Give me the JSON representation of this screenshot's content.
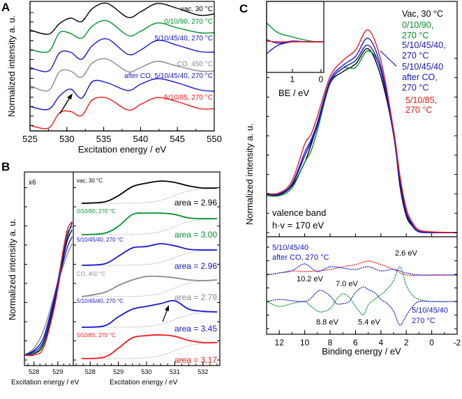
{
  "colors": {
    "black": "#000000",
    "green": "#00912a",
    "blue": "#1414d2",
    "gray": "#8a8a8a",
    "red": "#f01818",
    "bg": "#aaaaaa"
  },
  "chart_data": [
    {
      "panel": "A",
      "type": "line",
      "xlabel": "Excitation energy / eV",
      "ylabel": "Normalized intensity a. u.",
      "xlim": [
        525,
        550
      ],
      "xticks": [
        525,
        530,
        535,
        540,
        545,
        550
      ],
      "ylim": [
        0,
        18.6
      ],
      "x": [
        525,
        527.5,
        529,
        530.5,
        532,
        533.5,
        535.5,
        538.3,
        540,
        542.3,
        545,
        548,
        550
      ],
      "series": [
        {
          "name": "vac. 30 °C",
          "color": "black",
          "values": [
            14.5,
            13.9,
            15.4,
            16.2,
            15.7,
            17.6,
            18.3,
            16.3,
            17.1,
            18.3,
            17.6,
            16.6,
            16.8
          ]
        },
        {
          "name": "0/10/90, 270 °C",
          "color": "green",
          "values": [
            11.7,
            11.4,
            14.1,
            14.0,
            13.3,
            15.1,
            15.8,
            13.7,
            14.3,
            15.5,
            14.8,
            14.1,
            14.1
          ]
        },
        {
          "name": "5/10/45/40, 270 °C",
          "color": "blue",
          "values": [
            9.1,
            8.6,
            11.2,
            11.3,
            10.3,
            12.3,
            13.2,
            11.0,
            11.6,
            13.0,
            12.3,
            11.4,
            11.3
          ]
        },
        {
          "name": "CO, 450 °C",
          "color": "gray",
          "values": [
            6.5,
            5.8,
            8.5,
            8.6,
            7.7,
            9.8,
            10.3,
            8.5,
            9.1,
            10.0,
            9.3,
            8.6,
            8.6
          ]
        },
        {
          "name": "after CO, 5/10/45/40, 270 °C",
          "color": "blue",
          "values": [
            3.5,
            3.1,
            5.0,
            6.0,
            4.7,
            7.1,
            6.9,
            5.8,
            6.7,
            7.5,
            6.9,
            5.9,
            5.7
          ]
        },
        {
          "name": "5/10/85, 270 °C",
          "color": "red",
          "values": [
            0.8,
            0.4,
            2.6,
            2.8,
            2.2,
            4.5,
            4.7,
            3.0,
            3.8,
            4.8,
            4.2,
            3.2,
            3.2
          ]
        }
      ]
    },
    {
      "panel": "B-left",
      "type": "line",
      "xlabel": "Excitation energy / eV",
      "ylabel": "Normalized intensity a. u.",
      "annotation": "x6",
      "xlim": [
        527.6,
        529.65
      ],
      "xticks": [
        528,
        529
      ],
      "ylim": [
        0,
        27.8
      ],
      "x": [
        527.6,
        528,
        528.4,
        528.8,
        529,
        529.2,
        529.4,
        529.6
      ],
      "series": [
        {
          "color": "gray",
          "values": [
            1.5,
            2.5,
            5,
            9.5,
            12,
            14,
            16,
            17.5
          ]
        },
        {
          "color": "black",
          "values": [
            1.5,
            1.7,
            3,
            8,
            11,
            15,
            18,
            19.5
          ]
        },
        {
          "color": "green",
          "values": [
            1.5,
            1.8,
            3.2,
            8.5,
            12,
            16,
            19,
            20
          ]
        },
        {
          "color": "blue",
          "values": [
            1.5,
            2,
            3.5,
            8.5,
            11.5,
            14.5,
            17,
            18.5
          ]
        },
        {
          "color": "blue",
          "values": [
            1.5,
            2.2,
            4,
            9,
            12,
            15.5,
            18.5,
            20.5
          ]
        },
        {
          "color": "red",
          "values": [
            1.5,
            1.5,
            2.5,
            7.5,
            11,
            16,
            19.5,
            20.7
          ]
        }
      ]
    },
    {
      "panel": "B-right",
      "type": "line",
      "xlabel": "Excitation energy / eV",
      "xlim": [
        527.4,
        532.6
      ],
      "xticks": [
        528,
        529,
        530,
        531,
        532
      ],
      "ylim": [
        0,
        27.8
      ],
      "x": [
        527.7,
        528.5,
        529,
        529.5,
        530,
        530.5,
        531,
        531.5,
        532,
        532.5
      ],
      "series": [
        {
          "name": "vac, 30 °C",
          "color": "black",
          "area": "area = 2.96",
          "values": [
            23.3,
            23.5,
            24.4,
            25.7,
            26.2,
            26.5,
            26.3,
            25.8,
            25.5,
            25.5
          ]
        },
        {
          "name": "0/10/90, 270 °C",
          "color": "green",
          "area": "area = 3.00",
          "values": [
            18.8,
            19.0,
            20.0,
            21.7,
            21.9,
            21.9,
            21.7,
            21.2,
            21.1,
            21.1
          ]
        },
        {
          "name": "5/10/45/40, 270 °C",
          "color": "blue",
          "area": "area = 2.96",
          "values": [
            14.4,
            14.6,
            15.7,
            16.9,
            17.1,
            17.5,
            17.2,
            16.7,
            16.6,
            16.6
          ]
        },
        {
          "name": "CO, 450 °C",
          "color": "gray",
          "area": "area = 2.79",
          "values": [
            9.9,
            10.5,
            11.5,
            12.3,
            12.8,
            12.8,
            12.6,
            12.3,
            12.2,
            12.3
          ]
        },
        {
          "name": "5/10/45/40, 270 °C",
          "color": "blue",
          "area": "area = 3.45",
          "values": [
            5.5,
            5.7,
            7.0,
            8.1,
            8.5,
            8.9,
            9.3,
            8.1,
            7.8,
            7.7
          ]
        },
        {
          "name": "5/10/85, 270 °C",
          "color": "red",
          "area": "area = 3.17",
          "values": [
            1.0,
            1.2,
            2.5,
            4.0,
            4.3,
            4.4,
            4.2,
            3.6,
            3.3,
            3.3
          ]
        }
      ]
    },
    {
      "panel": "C",
      "type": "line",
      "xlabel": "Binding energy / eV",
      "ylabel": "Normalized intensity a. u.",
      "xlim": [
        13,
        -2
      ],
      "xticks": [
        12,
        10,
        8,
        6,
        4,
        2,
        0,
        -2
      ],
      "ylim": [
        0,
        33.4
      ],
      "annotation": [
        "valence band",
        "h·v = 170 eV"
      ],
      "x": [
        13,
        12,
        11,
        10,
        9.5,
        9,
        8,
        7,
        6,
        5,
        4,
        3,
        2.5,
        2,
        1.5,
        1,
        0,
        -2
      ],
      "series": [
        {
          "name": "Vac, 30 °C",
          "color": "black",
          "values": [
            5.5,
            5.4,
            6.7,
            10.1,
            12.6,
            15.4,
            21.4,
            23.1,
            24.2,
            26.4,
            22.4,
            14.1,
            6.7,
            2.4,
            0.9,
            0.1,
            0,
            0
          ]
        },
        {
          "name": "0/10/90, 270 °C",
          "color": "green",
          "values": [
            5.3,
            5.3,
            6.4,
            10.1,
            11.7,
            14.7,
            21.4,
            23.6,
            23.7,
            26.1,
            23.4,
            14.7,
            8.1,
            3.4,
            1.1,
            0.2,
            0,
            0
          ]
        },
        {
          "name": "5/10/45/40, 270 °C",
          "color": "blue",
          "values": [
            5.5,
            5.6,
            7.0,
            11.5,
            13.3,
            15.8,
            21.9,
            24.0,
            25.3,
            27.9,
            23.8,
            14.3,
            7.5,
            2.9,
            1.1,
            0.2,
            0,
            0
          ]
        },
        {
          "name": "5/10/45/40 after CO, 270 °C",
          "color": "blue",
          "values": [
            5.5,
            5.5,
            6.9,
            11.0,
            13.0,
            15.3,
            21.6,
            23.6,
            24.7,
            26.9,
            23.2,
            14.0,
            7.2,
            2.7,
            1.0,
            0.1,
            0,
            0
          ]
        },
        {
          "name": "5/10/85, 270 °C",
          "color": "red",
          "values": [
            5.6,
            5.7,
            7.4,
            12.7,
            14.1,
            16.7,
            22.4,
            24.7,
            26.2,
            29.1,
            24.7,
            14.7,
            8.1,
            3.4,
            1.4,
            0.4,
            0.1,
            0
          ]
        }
      ],
      "inset": {
        "xlabel": "BE / eV",
        "xlim": [
          1.9,
          -0.1
        ],
        "xticks": [
          1,
          0
        ],
        "x": [
          1.9,
          1.5,
          1,
          0.5,
          0.1,
          -0.1
        ],
        "series": [
          {
            "color": "green",
            "values": [
              2.7,
              1.3,
              0.7,
              0.2,
              0,
              0
            ]
          },
          {
            "color": "blue",
            "values": [
              -1.7,
              -0.5,
              0,
              0,
              0,
              0
            ]
          },
          {
            "color": "blue",
            "values": [
              0.3,
              -0.2,
              0.1,
              0,
              0,
              0
            ]
          },
          {
            "color": "red",
            "values": [
              0.1,
              0,
              0,
              0,
              0,
              0
            ]
          }
        ]
      },
      "difference": {
        "upper_label": [
          "5/10/45/40",
          "after CO, 270 °C"
        ],
        "lower_label": [
          "5/10/45/40",
          "270 °C"
        ],
        "peak_labels": [
          "2.6 eV",
          "10.2 eV",
          "7.0 eV",
          "8.8 eV",
          "5.4 eV"
        ],
        "upper_x": [
          13,
          12,
          11,
          10,
          9,
          8,
          7,
          6,
          5,
          4,
          3,
          2,
          1,
          0,
          -2
        ],
        "upper": [
          {
            "color": "red",
            "values": [
              0,
              0.3,
              0.6,
              0.5,
              0.6,
              0.8,
              1.2,
              1.5,
              2.0,
              1.5,
              0.8,
              0,
              0,
              0,
              0
            ]
          },
          {
            "color": "blue",
            "values": [
              0,
              0.3,
              0.6,
              1.6,
              0.5,
              1.2,
              1.0,
              0.8,
              1.2,
              0.6,
              0.8,
              0.3,
              0,
              0,
              0
            ]
          }
        ],
        "lower_x": [
          13,
          12,
          11,
          10,
          9.5,
          8.8,
          8,
          7.5,
          7,
          6.5,
          6,
          5.4,
          5,
          4.5,
          4,
          3.5,
          3,
          2.5,
          2,
          1.5,
          1,
          0,
          -2
        ],
        "lower": [
          {
            "color": "green",
            "values": [
              0,
              -0.7,
              -0.3,
              0,
              -0.7,
              -1.5,
              -1.0,
              0.3,
              1.1,
              0.6,
              -0.7,
              -1.9,
              -0.5,
              0.3,
              1.0,
              1.8,
              3.0,
              5.0,
              2.3,
              0.9,
              0.3,
              0,
              0
            ]
          },
          {
            "color": "blue",
            "values": [
              0,
              0.3,
              0.1,
              0,
              0.5,
              1.6,
              0.8,
              -0.3,
              -0.3,
              0,
              1.3,
              2.1,
              1.7,
              1.3,
              0.3,
              -0.3,
              -1.4,
              -3.4,
              -2.0,
              -0.7,
              0,
              0,
              0
            ]
          }
        ]
      }
    }
  ],
  "panels": {
    "a": "A",
    "b": "B",
    "c": "C"
  }
}
